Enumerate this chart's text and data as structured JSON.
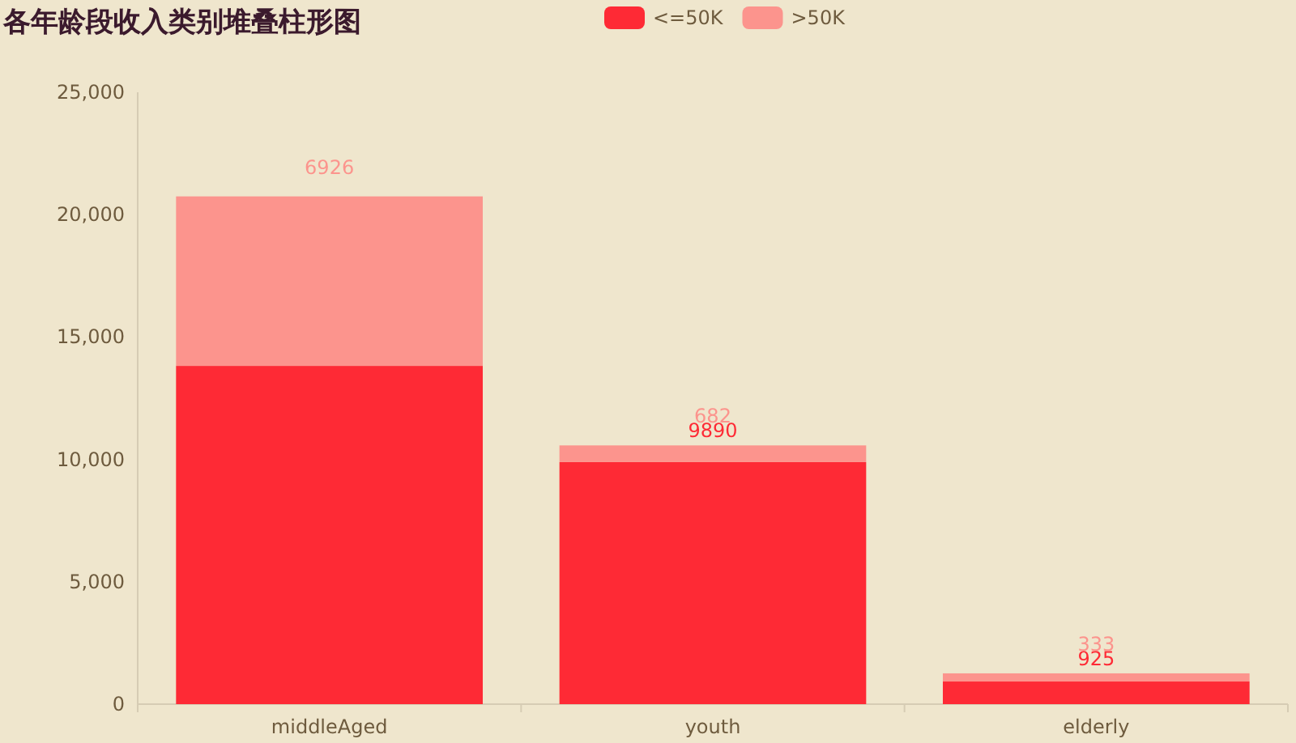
{
  "chart_data": {
    "type": "bar",
    "title": "各年龄段收入类别堆叠柱形图",
    "stacked": true,
    "legend": "top",
    "grid": false,
    "categories": [
      "middleAged",
      "youth",
      "elderly"
    ],
    "ylim": [
      0,
      25000
    ],
    "yticks": [
      {
        "value": 0,
        "label": "0"
      },
      {
        "value": 5000,
        "label": "5,000"
      },
      {
        "value": 10000,
        "label": "10,000"
      },
      {
        "value": 15000,
        "label": "15,000"
      },
      {
        "value": 20000,
        "label": "20,000"
      },
      {
        "value": 25000,
        "label": "25,000"
      }
    ],
    "series": [
      {
        "name": "<=50K",
        "color": "#fe2a35",
        "values": [
          13820,
          9890,
          925
        ],
        "value_labels": [
          null,
          "9890",
          "925"
        ]
      },
      {
        "name": ">50K",
        "color": "#fc948d",
        "values": [
          6926,
          682,
          333
        ],
        "value_labels": [
          "6926",
          "682",
          "333"
        ]
      }
    ]
  }
}
